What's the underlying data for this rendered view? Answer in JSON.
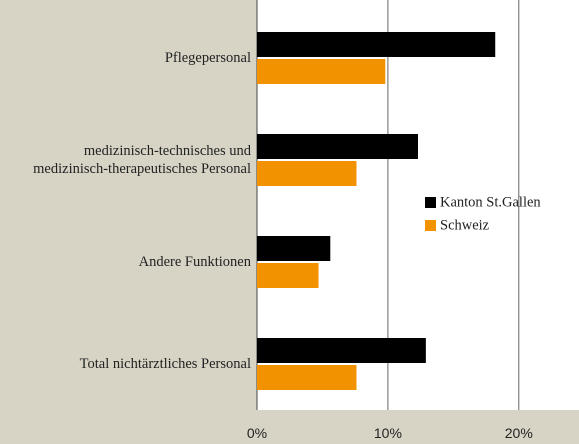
{
  "chart_data": {
    "type": "hbar",
    "categories": [
      "Pflegepersonal",
      "medizinisch-technisches und medizinisch-therapeutisches Personal",
      "Andere Funktionen",
      "Total nichtärztliches Personal"
    ],
    "series": [
      {
        "name": "Kanton St.Gallen",
        "color": "#000000",
        "values": [
          18.2,
          12.3,
          5.6,
          12.9
        ]
      },
      {
        "name": "Schweiz",
        "color": "#f39200",
        "values": [
          9.8,
          7.6,
          4.7,
          7.6
        ]
      }
    ],
    "xlim": [
      0,
      24.6
    ],
    "xticks": [
      {
        "value": 0,
        "label": "0%"
      },
      {
        "value": 10,
        "label": "10%"
      },
      {
        "value": 20,
        "label": "20%"
      }
    ],
    "grid": true
  }
}
